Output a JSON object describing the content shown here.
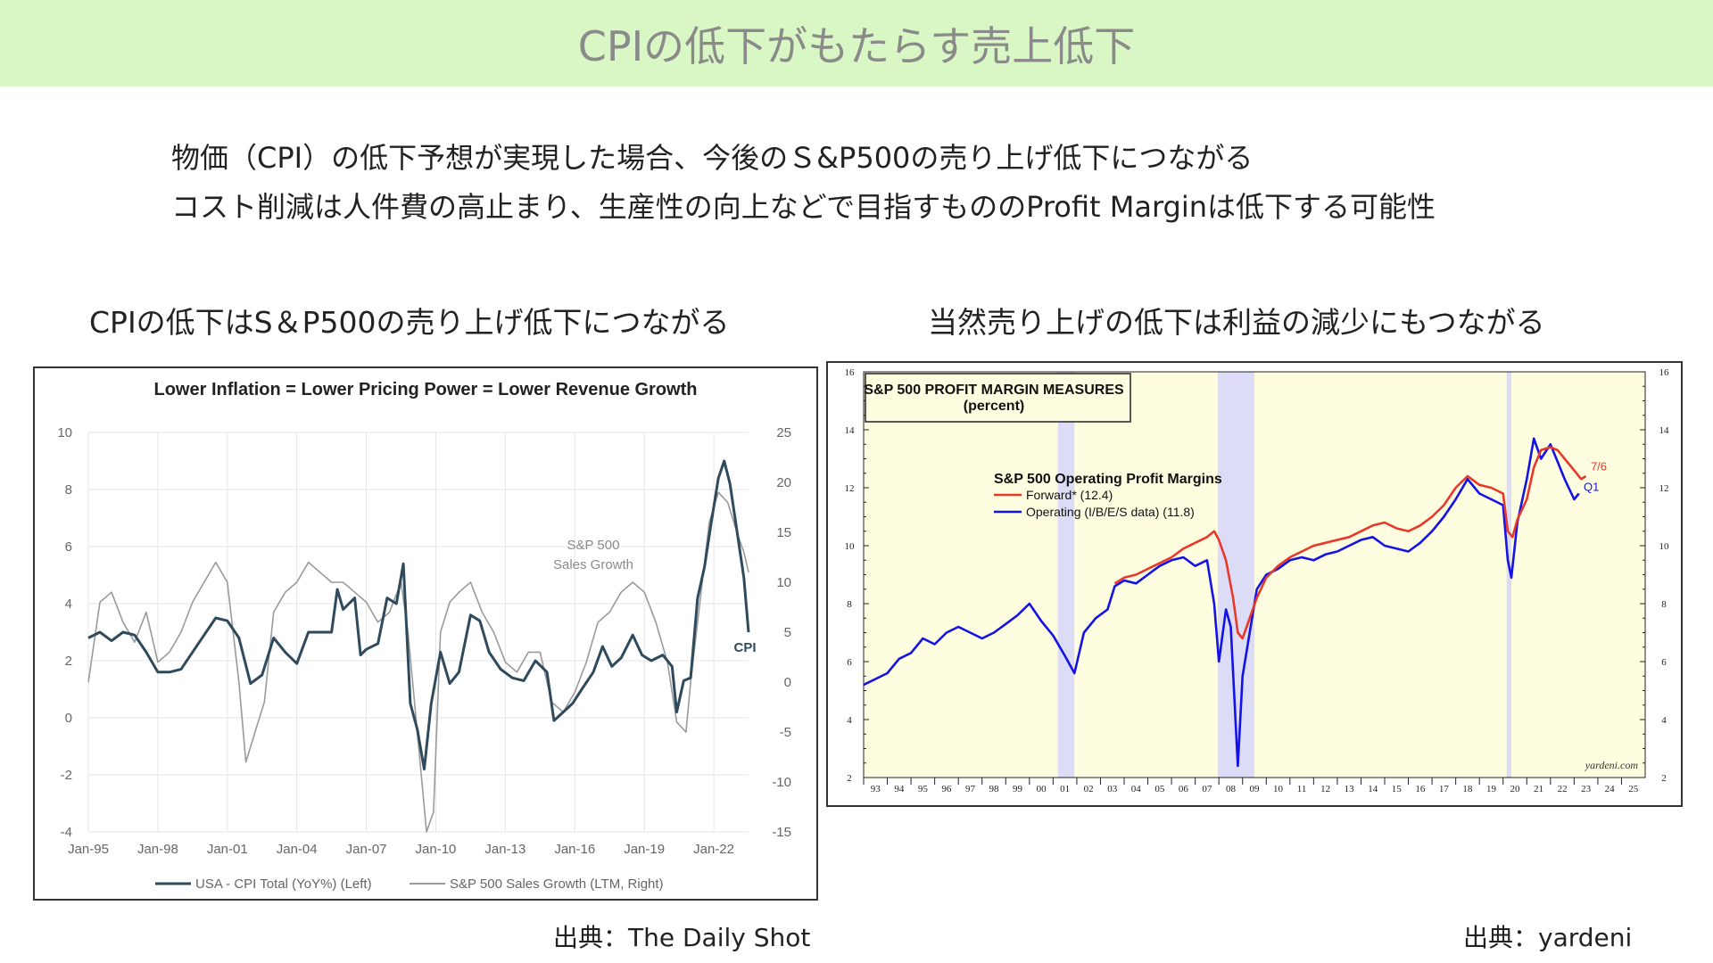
{
  "header": {
    "title": "CPIの低下がもたらす売上低下"
  },
  "lead": [
    "物価（CPI）の低下予想が実現した場合、今後のＳ&P500の売り上げ低下につながる",
    "コスト削減は人件費の高止まり、生産性の向上などで目指すもののProfit Marginは低下する可能性"
  ],
  "left_caption": "CPIの低下はS＆P500の売り上げ低下につながる",
  "right_caption": "当然売り上げの低下は利益の減少にもつながる",
  "left_source": "出典：The Daily Shot",
  "right_source": "出典：yardeni",
  "chart_data": [
    {
      "type": "line",
      "title": "Lower Inflation = Lower Pricing Power = Lower Revenue Growth",
      "x_ticks": [
        "Jan-95",
        "Jan-98",
        "Jan-01",
        "Jan-04",
        "Jan-07",
        "Jan-10",
        "Jan-13",
        "Jan-16",
        "Jan-19",
        "Jan-22"
      ],
      "x_range": [
        1995.0,
        2023.5
      ],
      "y_left_ticks": [
        "10",
        "8",
        "6",
        "4",
        "2",
        "0",
        "-2",
        "-4"
      ],
      "y_left_range": [
        -4,
        10
      ],
      "y_right_ticks": [
        "25",
        "20",
        "15",
        "10",
        "5",
        "0",
        "-5",
        "-10",
        "-15"
      ],
      "y_right_range": [
        -15,
        25
      ],
      "grid": true,
      "legend_position": "bottom",
      "annotations": {
        "cpi": "CPI",
        "sales": "S&P 500\nSales Growth"
      },
      "series": [
        {
          "name": "USA - CPI Total (YoY%) (Left)",
          "axis": "left",
          "color": "#2e4a5c",
          "x": [
            1995.0,
            1995.5,
            1996.0,
            1996.5,
            1997.0,
            1997.5,
            1998.0,
            1998.5,
            1999.0,
            1999.5,
            2000.0,
            2000.5,
            2001.0,
            2001.5,
            2002.0,
            2002.5,
            2003.0,
            2003.5,
            2004.0,
            2004.5,
            2005.0,
            2005.5,
            2005.75,
            2006.0,
            2006.5,
            2006.75,
            2007.0,
            2007.5,
            2007.9,
            2008.3,
            2008.6,
            2008.9,
            2009.2,
            2009.5,
            2009.8,
            2010.2,
            2010.6,
            2011.0,
            2011.5,
            2011.9,
            2012.3,
            2012.8,
            2013.3,
            2013.8,
            2014.3,
            2014.8,
            2015.1,
            2015.5,
            2015.9,
            2016.3,
            2016.8,
            2017.2,
            2017.6,
            2018.0,
            2018.5,
            2018.9,
            2019.3,
            2019.8,
            2020.2,
            2020.4,
            2020.7,
            2021.0,
            2021.3,
            2021.6,
            2021.9,
            2022.2,
            2022.45,
            2022.7,
            2022.9,
            2023.1,
            2023.3,
            2023.5
          ],
          "y": [
            2.8,
            3.0,
            2.7,
            3.0,
            2.9,
            2.3,
            1.6,
            1.6,
            1.7,
            2.3,
            2.9,
            3.5,
            3.4,
            2.8,
            1.2,
            1.5,
            2.8,
            2.3,
            1.9,
            3.0,
            3.0,
            3.0,
            4.5,
            3.8,
            4.2,
            2.2,
            2.4,
            2.6,
            4.2,
            4.0,
            5.4,
            0.5,
            -0.4,
            -1.8,
            0.5,
            2.3,
            1.2,
            1.6,
            3.6,
            3.4,
            2.3,
            1.7,
            1.4,
            1.3,
            2.0,
            1.6,
            -0.1,
            0.2,
            0.5,
            1.0,
            1.6,
            2.5,
            1.8,
            2.1,
            2.9,
            2.2,
            2.0,
            2.2,
            1.8,
            0.2,
            1.3,
            1.4,
            4.2,
            5.3,
            6.9,
            8.4,
            9.0,
            8.2,
            7.1,
            6.0,
            4.9,
            3.0
          ]
        },
        {
          "name": "S&P 500 Sales Growth (LTM, Right)",
          "axis": "right",
          "color": "#9a9a9a",
          "x": [
            1995.0,
            1995.5,
            1996.0,
            1996.5,
            1997.0,
            1997.5,
            1998.0,
            1998.5,
            1999.0,
            1999.5,
            2000.0,
            2000.5,
            2001.0,
            2001.5,
            2001.8,
            2002.2,
            2002.6,
            2003.0,
            2003.5,
            2004.0,
            2004.5,
            2005.0,
            2005.5,
            2006.0,
            2006.5,
            2007.0,
            2007.5,
            2008.0,
            2008.5,
            2008.8,
            2009.2,
            2009.6,
            2009.9,
            2010.2,
            2010.6,
            2011.0,
            2011.5,
            2012.0,
            2012.5,
            2013.0,
            2013.5,
            2014.0,
            2014.5,
            2015.0,
            2015.5,
            2016.0,
            2016.5,
            2017.0,
            2017.5,
            2018.0,
            2018.5,
            2019.0,
            2019.5,
            2020.0,
            2020.4,
            2020.8,
            2021.0,
            2021.4,
            2021.8,
            2022.2,
            2022.6,
            2023.0,
            2023.3,
            2023.5
          ],
          "y": [
            0.0,
            8.0,
            9.0,
            6.0,
            4.0,
            7.0,
            2.0,
            3.0,
            5.0,
            8.0,
            10.0,
            12.0,
            10.0,
            0.0,
            -8.0,
            -5.0,
            -2.0,
            7.0,
            9.0,
            10.0,
            12.0,
            11.0,
            10.0,
            10.0,
            9.0,
            8.0,
            6.0,
            7.0,
            10.0,
            5.0,
            -5.0,
            -15.0,
            -13.0,
            5.0,
            8.0,
            9.0,
            10.0,
            7.0,
            5.0,
            2.0,
            1.0,
            3.0,
            3.0,
            -2.0,
            -3.0,
            -1.0,
            2.0,
            6.0,
            7.0,
            9.0,
            10.0,
            9.0,
            6.0,
            2.0,
            -4.0,
            -5.0,
            0.0,
            8.0,
            16.0,
            19.0,
            18.0,
            15.0,
            13.0,
            11.0
          ]
        }
      ]
    },
    {
      "type": "line",
      "title": "S&P 500  PROFIT MARGIN MEASURES",
      "subtitle": "(percent)",
      "legend_title": "S&P 500 Operating Profit Margins",
      "watermark": "yardeni.com",
      "x_ticks": [
        "93",
        "94",
        "95",
        "96",
        "97",
        "98",
        "99",
        "00",
        "01",
        "02",
        "03",
        "04",
        "05",
        "06",
        "07",
        "08",
        "09",
        "10",
        "11",
        "12",
        "13",
        "14",
        "15",
        "16",
        "17",
        "18",
        "19",
        "20",
        "21",
        "22",
        "23",
        "24",
        "25"
      ],
      "x_range": [
        1993.0,
        2026.0
      ],
      "y_ticks": [
        "16",
        "14",
        "12",
        "10",
        "8",
        "6",
        "4",
        "2"
      ],
      "y_range": [
        2,
        16
      ],
      "recession_shading": [
        [
          2001.2,
          2001.9
        ],
        [
          2007.95,
          2009.5
        ],
        [
          2020.15,
          2020.35
        ]
      ],
      "end_labels": {
        "forward": "7/6",
        "operating": "Q1"
      },
      "colors": {
        "plot_bg": "#fffde0",
        "recession": "#dcdcf7"
      },
      "series": [
        {
          "name": "Forward* (12.4)",
          "color": "#e8382a",
          "x": [
            2003.6,
            2004.0,
            2004.5,
            2005.0,
            2005.5,
            2006.0,
            2006.5,
            2007.0,
            2007.5,
            2007.8,
            2008.0,
            2008.3,
            2008.6,
            2008.8,
            2009.0,
            2009.3,
            2009.6,
            2010.0,
            2010.5,
            2011.0,
            2011.5,
            2012.0,
            2012.5,
            2013.0,
            2013.5,
            2014.0,
            2014.5,
            2015.0,
            2015.5,
            2016.0,
            2016.5,
            2017.0,
            2017.5,
            2018.0,
            2018.5,
            2019.0,
            2019.5,
            2020.0,
            2020.2,
            2020.4,
            2020.6,
            2021.0,
            2021.3,
            2021.6,
            2022.0,
            2022.3,
            2022.6,
            2023.0,
            2023.3,
            2023.5
          ],
          "y": [
            8.7,
            8.9,
            9.0,
            9.2,
            9.4,
            9.6,
            9.9,
            10.1,
            10.3,
            10.5,
            10.2,
            9.5,
            8.2,
            7.0,
            6.8,
            7.5,
            8.2,
            8.9,
            9.3,
            9.6,
            9.8,
            10.0,
            10.1,
            10.2,
            10.3,
            10.5,
            10.7,
            10.8,
            10.6,
            10.5,
            10.7,
            11.0,
            11.4,
            12.0,
            12.4,
            12.1,
            12.0,
            11.8,
            10.5,
            10.3,
            10.9,
            11.6,
            12.7,
            13.3,
            13.4,
            13.3,
            13.0,
            12.6,
            12.3,
            12.4
          ]
        },
        {
          "name": "Operating (I/B/E/S data) (11.8)",
          "color": "#1313e6",
          "x": [
            1993.0,
            1993.5,
            1994.0,
            1994.5,
            1995.0,
            1995.5,
            1996.0,
            1996.5,
            1997.0,
            1997.5,
            1998.0,
            1998.5,
            1999.0,
            1999.5,
            2000.0,
            2000.5,
            2001.0,
            2001.5,
            2001.9,
            2002.3,
            2002.8,
            2003.3,
            2003.6,
            2004.0,
            2004.5,
            2005.0,
            2005.5,
            2006.0,
            2006.5,
            2007.0,
            2007.5,
            2007.8,
            2008.0,
            2008.3,
            2008.5,
            2008.8,
            2009.0,
            2009.3,
            2009.6,
            2010.0,
            2010.5,
            2011.0,
            2011.5,
            2012.0,
            2012.5,
            2013.0,
            2013.5,
            2014.0,
            2014.5,
            2015.0,
            2015.5,
            2016.0,
            2016.5,
            2017.0,
            2017.5,
            2018.0,
            2018.5,
            2019.0,
            2019.5,
            2020.0,
            2020.2,
            2020.35,
            2020.6,
            2021.0,
            2021.3,
            2021.6,
            2022.0,
            2022.3,
            2022.6,
            2023.0,
            2023.2
          ],
          "y": [
            5.2,
            5.4,
            5.6,
            6.1,
            6.3,
            6.8,
            6.6,
            7.0,
            7.2,
            7.0,
            6.8,
            7.0,
            7.3,
            7.6,
            8.0,
            7.4,
            6.9,
            6.2,
            5.6,
            7.0,
            7.5,
            7.8,
            8.6,
            8.8,
            8.7,
            9.0,
            9.3,
            9.5,
            9.6,
            9.3,
            9.5,
            8.0,
            6.0,
            7.8,
            7.2,
            2.4,
            5.5,
            7.0,
            8.5,
            9.0,
            9.2,
            9.5,
            9.6,
            9.5,
            9.7,
            9.8,
            10.0,
            10.2,
            10.3,
            10.0,
            9.9,
            9.8,
            10.1,
            10.5,
            11.0,
            11.6,
            12.3,
            11.8,
            11.6,
            11.4,
            9.5,
            8.9,
            10.8,
            12.3,
            13.7,
            13.0,
            13.5,
            12.9,
            12.3,
            11.6,
            11.8
          ]
        }
      ]
    }
  ]
}
